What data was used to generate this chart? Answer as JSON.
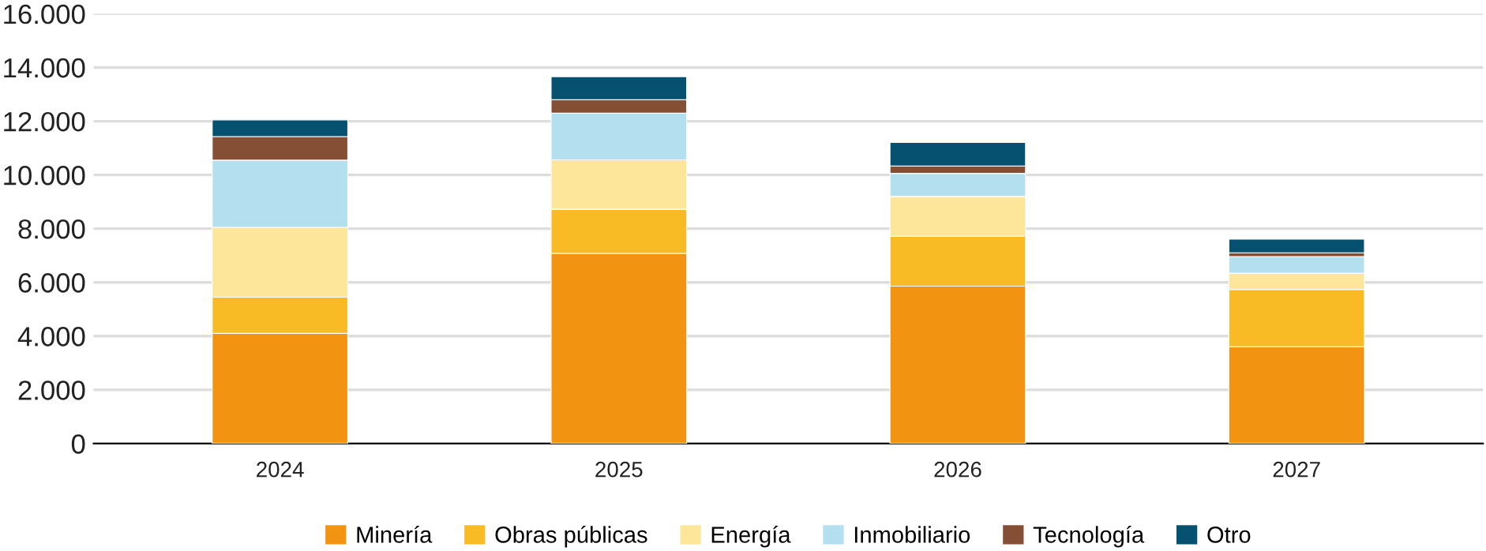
{
  "chart_data": {
    "type": "bar",
    "stacked": true,
    "categories": [
      "2024",
      "2025",
      "2026",
      "2027"
    ],
    "series": [
      {
        "name": "Minería",
        "color": "#f29312",
        "values": [
          4100,
          7080,
          5860,
          3600
        ]
      },
      {
        "name": "Obras públicas",
        "color": "#f9bb25",
        "values": [
          1350,
          1640,
          1860,
          2140
        ]
      },
      {
        "name": "Energía",
        "color": "#fde699",
        "values": [
          2600,
          1840,
          1480,
          600
        ]
      },
      {
        "name": "Inmobiliario",
        "color": "#b4dfee",
        "values": [
          2500,
          1740,
          860,
          620
        ]
      },
      {
        "name": "Tecnología",
        "color": "#844f35",
        "values": [
          880,
          500,
          270,
          140
        ]
      },
      {
        "name": "Otro",
        "color": "#05516f",
        "values": [
          620,
          860,
          880,
          510
        ]
      }
    ],
    "ylim": [
      0,
      16000
    ],
    "yticks": [
      0,
      {
        "value": 2000,
        "label": "2.000"
      },
      {
        "value": 4000,
        "label": "4.000"
      },
      {
        "value": 6000,
        "label": "6.000"
      },
      {
        "value": 8000,
        "label": "8.000"
      },
      {
        "value": 10000,
        "label": "10.000"
      },
      {
        "value": 12000,
        "label": "12.000"
      },
      {
        "value": 14000,
        "label": "14.000"
      },
      {
        "value": 16000,
        "label": "16.000"
      }
    ],
    "grid": "y",
    "legend": "bottom"
  }
}
